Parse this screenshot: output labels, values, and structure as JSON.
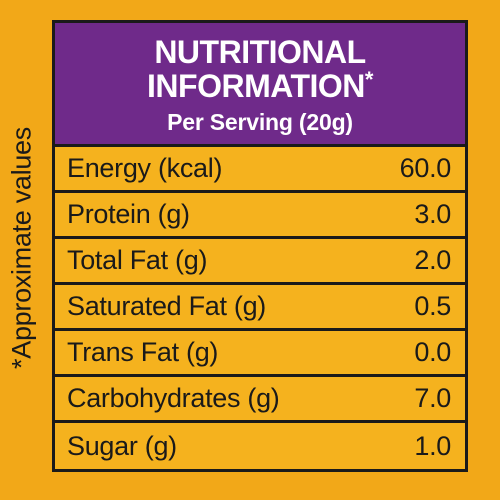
{
  "side_note": "*Approximate values",
  "header": {
    "title_line1": "NUTRITIONAL",
    "title_line2": "INFORMATION",
    "title_mark": "*",
    "serving": "Per Serving (20g)"
  },
  "rows": [
    {
      "label": "Energy (kcal)",
      "value": "60.0"
    },
    {
      "label": "Protein (g)",
      "value": "3.0"
    },
    {
      "label": "Total Fat (g)",
      "value": "2.0"
    },
    {
      "label": "Saturated Fat (g)",
      "value": "0.5"
    },
    {
      "label": "Trans Fat (g)",
      "value": "0.0"
    },
    {
      "label": "Carbohydrates (g)",
      "value": "7.0"
    },
    {
      "label": "Sugar (g)",
      "value": "1.0"
    }
  ],
  "colors": {
    "background": "#f2a818",
    "header": "#6f2a8a",
    "border": "#1a1a1a"
  }
}
